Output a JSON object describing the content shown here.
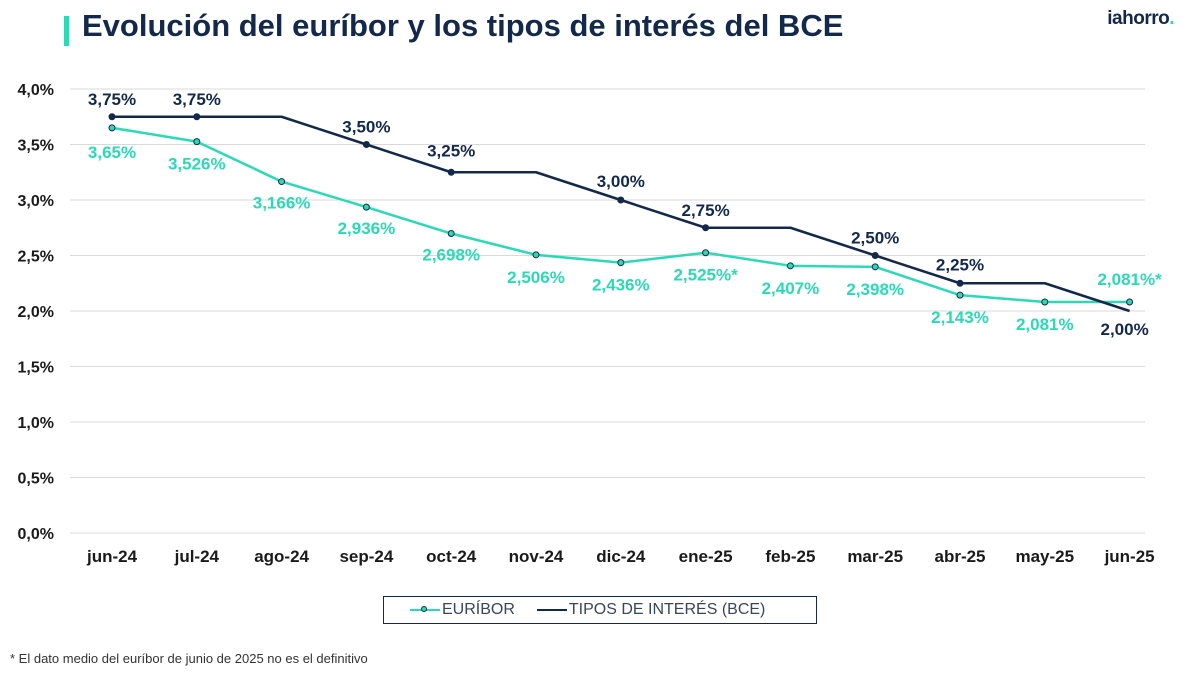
{
  "header": {
    "title": "Evolución del euríbor y los tipos de interés del BCE",
    "logo_main": "iahorro",
    "logo_dot": "."
  },
  "colors": {
    "accent": "#2bd9b4",
    "navy": "#13294b",
    "grid": "#d9d9d9"
  },
  "chart_data": {
    "type": "line",
    "categories": [
      "jun-24",
      "jul-24",
      "ago-24",
      "sep-24",
      "oct-24",
      "nov-24",
      "dic-24",
      "ene-25",
      "feb-25",
      "mar-25",
      "abr-25",
      "may-25",
      "jun-25"
    ],
    "ylim": [
      0,
      4.0
    ],
    "yticks": [
      0,
      0.5,
      1.0,
      1.5,
      2.0,
      2.5,
      3.0,
      3.5,
      4.0
    ],
    "ytick_labels": [
      "0,0%",
      "0,5%",
      "1,0%",
      "1,5%",
      "2,0%",
      "2,5%",
      "3,0%",
      "3,5%",
      "4,0%"
    ],
    "grid": true,
    "legend_position": "bottom",
    "series": [
      {
        "name": "EURÍBOR",
        "color": "#2bd9b4",
        "values": [
          3.65,
          3.526,
          3.166,
          2.936,
          2.698,
          2.506,
          2.436,
          2.525,
          2.407,
          2.398,
          2.143,
          2.081,
          2.081
        ],
        "markers": [
          true,
          true,
          true,
          true,
          true,
          true,
          true,
          true,
          true,
          true,
          true,
          true,
          true
        ],
        "labels": [
          "3,65%",
          "3,526%",
          "3,166%",
          "2,936%",
          "2,698%",
          "2,506%",
          "2,436%",
          "2,525%*",
          "2,407%",
          "2,398%",
          "2,143%",
          "2,081%",
          "2,081%*"
        ]
      },
      {
        "name": "TIPOS DE INTERÉS (BCE)",
        "color": "#13294b",
        "values": [
          3.75,
          3.75,
          3.75,
          3.5,
          3.25,
          3.25,
          3.0,
          2.75,
          2.75,
          2.5,
          2.25,
          2.25,
          2.0
        ],
        "markers": [
          true,
          true,
          false,
          true,
          true,
          false,
          true,
          true,
          false,
          true,
          true,
          false,
          false
        ],
        "labels": [
          "3,75%",
          "3,75%",
          "",
          "3,50%",
          "3,25%",
          "",
          "3,00%",
          "2,75%",
          "",
          "2,50%",
          "2,25%",
          "",
          "2,00%"
        ]
      }
    ]
  },
  "footnote": "* El dato medio del euríbor de junio de 2025 no es el definitivo"
}
